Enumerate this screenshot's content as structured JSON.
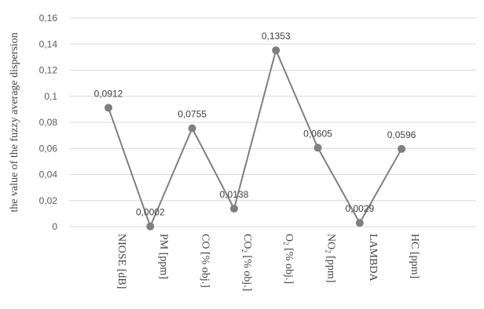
{
  "chart_data": {
    "type": "line",
    "ylabel": "the value of the fuzzy average dispersion",
    "xlabel": "",
    "ylim": [
      0,
      0.16
    ],
    "yticks": [
      0,
      0.02,
      0.04,
      0.06,
      0.08,
      0.1,
      0.12,
      0.14,
      0.16
    ],
    "ytick_labels": [
      "0",
      "0,02",
      "0,04",
      "0,06",
      "0,08",
      "0,1",
      "0,12",
      "0,14",
      "0,16"
    ],
    "grid": true,
    "line_color": "#7f7f7f",
    "marker_color": "#7f7f7f",
    "categories": [
      {
        "main": "NIOSE [dB]",
        "sub": "",
        "rest": ""
      },
      {
        "main": "PM [ppm]",
        "sub": "",
        "rest": ""
      },
      {
        "main": "CO [% obj.]",
        "sub": "",
        "rest": ""
      },
      {
        "main": "CO",
        "sub": "2",
        "rest": " [% obj.]"
      },
      {
        "main": "O",
        "sub": "2",
        "rest": " [% obj.]"
      },
      {
        "main": "NO",
        "sub": "2",
        "rest": " [ppm]"
      },
      {
        "main": "LAMBDA",
        "sub": "",
        "rest": ""
      },
      {
        "main": "HC [ppm]",
        "sub": "",
        "rest": ""
      }
    ],
    "values": [
      0.0912,
      0.0002,
      0.0755,
      0.0138,
      0.1353,
      0.0605,
      0.0029,
      0.0596
    ],
    "value_labels": [
      "0,0912",
      "0,0002",
      "0,0755",
      "0,0138",
      "0,1353",
      "0,0605",
      "0,0029",
      "0,0596"
    ]
  }
}
